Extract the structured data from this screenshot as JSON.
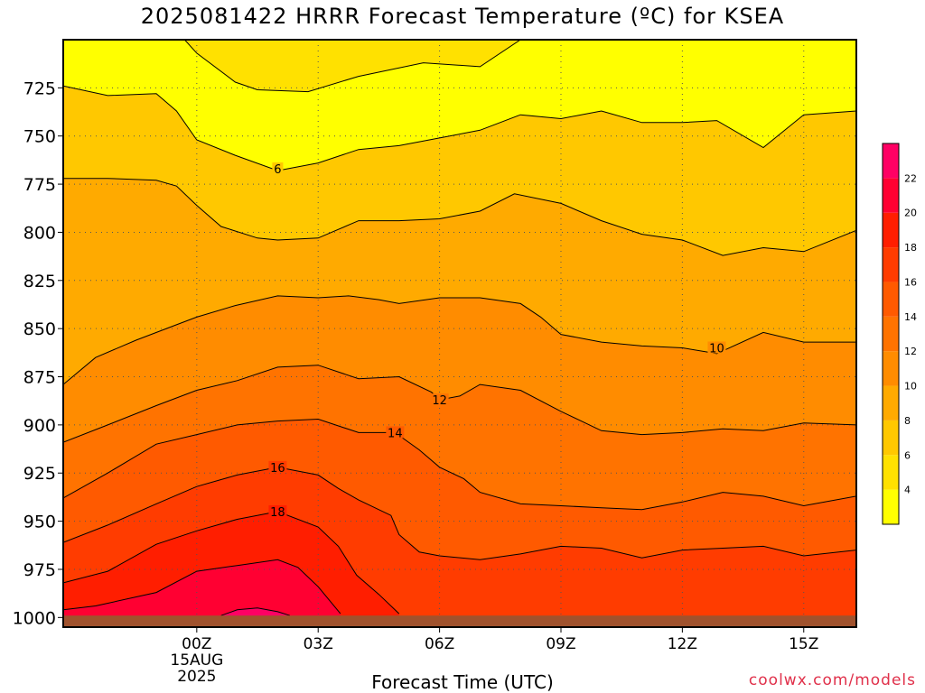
{
  "chart_data": {
    "type": "contour",
    "title": "2025081422 HRRR Forecast Temperature (ºC) for KSEA",
    "xlabel": "Forecast Time (UTC)",
    "ylabel": "",
    "credit": "coolwx.com/models",
    "x_range_hours": [
      -3.3,
      16.3
    ],
    "y_range_hpa": [
      700,
      1005
    ],
    "y_ticks": [
      725,
      750,
      775,
      800,
      825,
      850,
      875,
      900,
      925,
      950,
      975,
      1000
    ],
    "x_ticks": [
      {
        "hour": 0,
        "label": "00Z",
        "sub": [
          "15AUG",
          "2025"
        ]
      },
      {
        "hour": 3,
        "label": "03Z",
        "sub": []
      },
      {
        "hour": 6,
        "label": "06Z",
        "sub": []
      },
      {
        "hour": 9,
        "label": "09Z",
        "sub": []
      },
      {
        "hour": 12,
        "label": "12Z",
        "sub": []
      },
      {
        "hour": 15,
        "label": "15Z",
        "sub": []
      }
    ],
    "ground_level_hpa": 999,
    "colorbar": {
      "labels": [
        4,
        6,
        8,
        10,
        12,
        14,
        16,
        18,
        20,
        22
      ],
      "bands": [
        {
          "min": 2,
          "max": 4,
          "color": "#ffff00"
        },
        {
          "min": 4,
          "max": 6,
          "color": "#ffe100"
        },
        {
          "min": 6,
          "max": 8,
          "color": "#ffc800"
        },
        {
          "min": 8,
          "max": 10,
          "color": "#ffaa00"
        },
        {
          "min": 10,
          "max": 12,
          "color": "#ff8c00"
        },
        {
          "min": 12,
          "max": 14,
          "color": "#ff7300"
        },
        {
          "min": 14,
          "max": 16,
          "color": "#ff5a00"
        },
        {
          "min": 16,
          "max": 18,
          "color": "#ff3c00"
        },
        {
          "min": 18,
          "max": 20,
          "color": "#ff1e00"
        },
        {
          "min": 20,
          "max": 22,
          "color": "#ff0032"
        },
        {
          "min": 22,
          "max": 24,
          "color": "#ff0064"
        }
      ]
    },
    "isotherms": [
      {
        "value": 4,
        "label_at": null,
        "points": [
          [
            -0.3,
            700
          ],
          [
            0.0,
            707
          ],
          [
            0.95,
            722
          ],
          [
            1.5,
            726
          ],
          [
            2.75,
            727
          ],
          [
            4.0,
            719
          ],
          [
            5.6,
            712
          ],
          [
            7.0,
            714
          ],
          [
            8.0,
            700
          ]
        ]
      },
      {
        "value": 6,
        "label_at": [
          2.0,
          767
        ],
        "points": [
          [
            -3.3,
            724
          ],
          [
            -2.2,
            729
          ],
          [
            -1.0,
            728
          ],
          [
            -0.5,
            737
          ],
          [
            0.0,
            752
          ],
          [
            0.95,
            760
          ],
          [
            2.0,
            768
          ],
          [
            3.0,
            764
          ],
          [
            4.0,
            757
          ],
          [
            5.0,
            755
          ],
          [
            6.0,
            751
          ],
          [
            7.0,
            747
          ],
          [
            8.0,
            739
          ],
          [
            9.0,
            741
          ],
          [
            10.0,
            737
          ],
          [
            11.0,
            743
          ],
          [
            12.0,
            743
          ],
          [
            12.85,
            742
          ],
          [
            14.0,
            756
          ],
          [
            15.0,
            739
          ],
          [
            16.3,
            737
          ]
        ]
      },
      {
        "value": 8,
        "label_at": null,
        "points": [
          [
            -3.3,
            772
          ],
          [
            -2.2,
            772
          ],
          [
            -1.0,
            773
          ],
          [
            -0.5,
            776
          ],
          [
            0.0,
            786
          ],
          [
            0.6,
            797
          ],
          [
            1.5,
            803
          ],
          [
            2.0,
            804
          ],
          [
            3.0,
            803
          ],
          [
            4.0,
            794
          ],
          [
            5.0,
            794
          ],
          [
            6.0,
            793
          ],
          [
            7.0,
            789
          ],
          [
            7.85,
            780
          ],
          [
            9.0,
            785
          ],
          [
            10.0,
            794
          ],
          [
            11.0,
            801
          ],
          [
            12.0,
            804
          ],
          [
            13.0,
            812
          ],
          [
            14.0,
            808
          ],
          [
            15.0,
            810
          ],
          [
            16.3,
            799
          ]
        ]
      },
      {
        "value": 10,
        "label_at": [
          12.85,
          860
        ],
        "points": [
          [
            -3.3,
            879
          ],
          [
            -2.5,
            865
          ],
          [
            -1.5,
            856
          ],
          [
            -0.5,
            848
          ],
          [
            0.0,
            844
          ],
          [
            0.95,
            838
          ],
          [
            2.0,
            833
          ],
          [
            3.0,
            834
          ],
          [
            3.75,
            833
          ],
          [
            4.5,
            835
          ],
          [
            5.0,
            837
          ],
          [
            6.0,
            834
          ],
          [
            7.0,
            834
          ],
          [
            8.0,
            837
          ],
          [
            8.5,
            844
          ],
          [
            9.0,
            853
          ],
          [
            10.0,
            857
          ],
          [
            11.0,
            859
          ],
          [
            12.0,
            860
          ],
          [
            12.85,
            863
          ],
          [
            14.0,
            852
          ],
          [
            15.0,
            857
          ],
          [
            16.3,
            857
          ]
        ]
      },
      {
        "value": 12,
        "label_at": [
          6.0,
          887
        ],
        "points": [
          [
            -3.3,
            909
          ],
          [
            -2.2,
            900
          ],
          [
            -1.0,
            890
          ],
          [
            0.0,
            882
          ],
          [
            1.0,
            877
          ],
          [
            2.0,
            870
          ],
          [
            3.0,
            869
          ],
          [
            4.0,
            876
          ],
          [
            5.0,
            875
          ],
          [
            5.8,
            883
          ],
          [
            6.0,
            887
          ],
          [
            6.5,
            885
          ],
          [
            7.0,
            879
          ],
          [
            8.0,
            882
          ],
          [
            9.0,
            893
          ],
          [
            10.0,
            903
          ],
          [
            11.0,
            905
          ],
          [
            12.0,
            904
          ],
          [
            13.0,
            902
          ],
          [
            14.0,
            903
          ],
          [
            15.0,
            899
          ],
          [
            16.3,
            900
          ]
        ]
      },
      {
        "value": 14,
        "label_at": [
          4.9,
          904
        ],
        "points": [
          [
            -3.3,
            938
          ],
          [
            -2.2,
            925
          ],
          [
            -1.0,
            910
          ],
          [
            0.0,
            905
          ],
          [
            1.0,
            900
          ],
          [
            2.0,
            898
          ],
          [
            3.0,
            897
          ],
          [
            4.0,
            904
          ],
          [
            4.9,
            904
          ],
          [
            5.5,
            913
          ],
          [
            6.0,
            922
          ],
          [
            6.6,
            928
          ],
          [
            7.0,
            935
          ],
          [
            8.0,
            941
          ],
          [
            9.0,
            942
          ],
          [
            10.0,
            943
          ],
          [
            11.0,
            944
          ],
          [
            12.0,
            940
          ],
          [
            13.0,
            935
          ],
          [
            14.0,
            937
          ],
          [
            15.0,
            942
          ],
          [
            16.3,
            937
          ]
        ]
      },
      {
        "value": 16,
        "label_at": [
          2.0,
          922
        ],
        "points": [
          [
            -3.3,
            961
          ],
          [
            -2.2,
            952
          ],
          [
            -1.0,
            941
          ],
          [
            0.0,
            932
          ],
          [
            1.0,
            926
          ],
          [
            2.0,
            922
          ],
          [
            3.0,
            926
          ],
          [
            3.5,
            933
          ],
          [
            4.0,
            939
          ],
          [
            4.8,
            947
          ],
          [
            5.0,
            957
          ],
          [
            5.5,
            966
          ],
          [
            6.0,
            968
          ],
          [
            7.0,
            970
          ],
          [
            8.0,
            967
          ],
          [
            9.0,
            963
          ],
          [
            10.0,
            964
          ],
          [
            11.0,
            969
          ],
          [
            12.0,
            965
          ],
          [
            13.0,
            964
          ],
          [
            14.0,
            963
          ],
          [
            15.0,
            968
          ],
          [
            16.3,
            965
          ]
        ]
      },
      {
        "value": 18,
        "label_at": [
          2.0,
          945
        ],
        "points": [
          [
            -3.3,
            982
          ],
          [
            -2.2,
            976
          ],
          [
            -1.0,
            962
          ],
          [
            0.0,
            955
          ],
          [
            1.0,
            949
          ],
          [
            2.0,
            945
          ],
          [
            3.0,
            953
          ],
          [
            3.5,
            963
          ],
          [
            3.95,
            978
          ],
          [
            4.5,
            988
          ],
          [
            5.0,
            998
          ]
        ]
      },
      {
        "value": 20,
        "label_at": null,
        "points": [
          [
            -3.3,
            996
          ],
          [
            -2.5,
            994
          ],
          [
            -1.0,
            987
          ],
          [
            0.0,
            976
          ],
          [
            1.0,
            973
          ],
          [
            2.0,
            970
          ],
          [
            2.5,
            974
          ],
          [
            3.0,
            984
          ],
          [
            3.55,
            998
          ]
        ]
      },
      {
        "value": 22,
        "label_at": null,
        "points": [
          [
            0.6,
            999
          ],
          [
            1.0,
            996
          ],
          [
            1.5,
            995
          ],
          [
            2.0,
            997
          ],
          [
            2.3,
            999
          ]
        ]
      }
    ]
  }
}
